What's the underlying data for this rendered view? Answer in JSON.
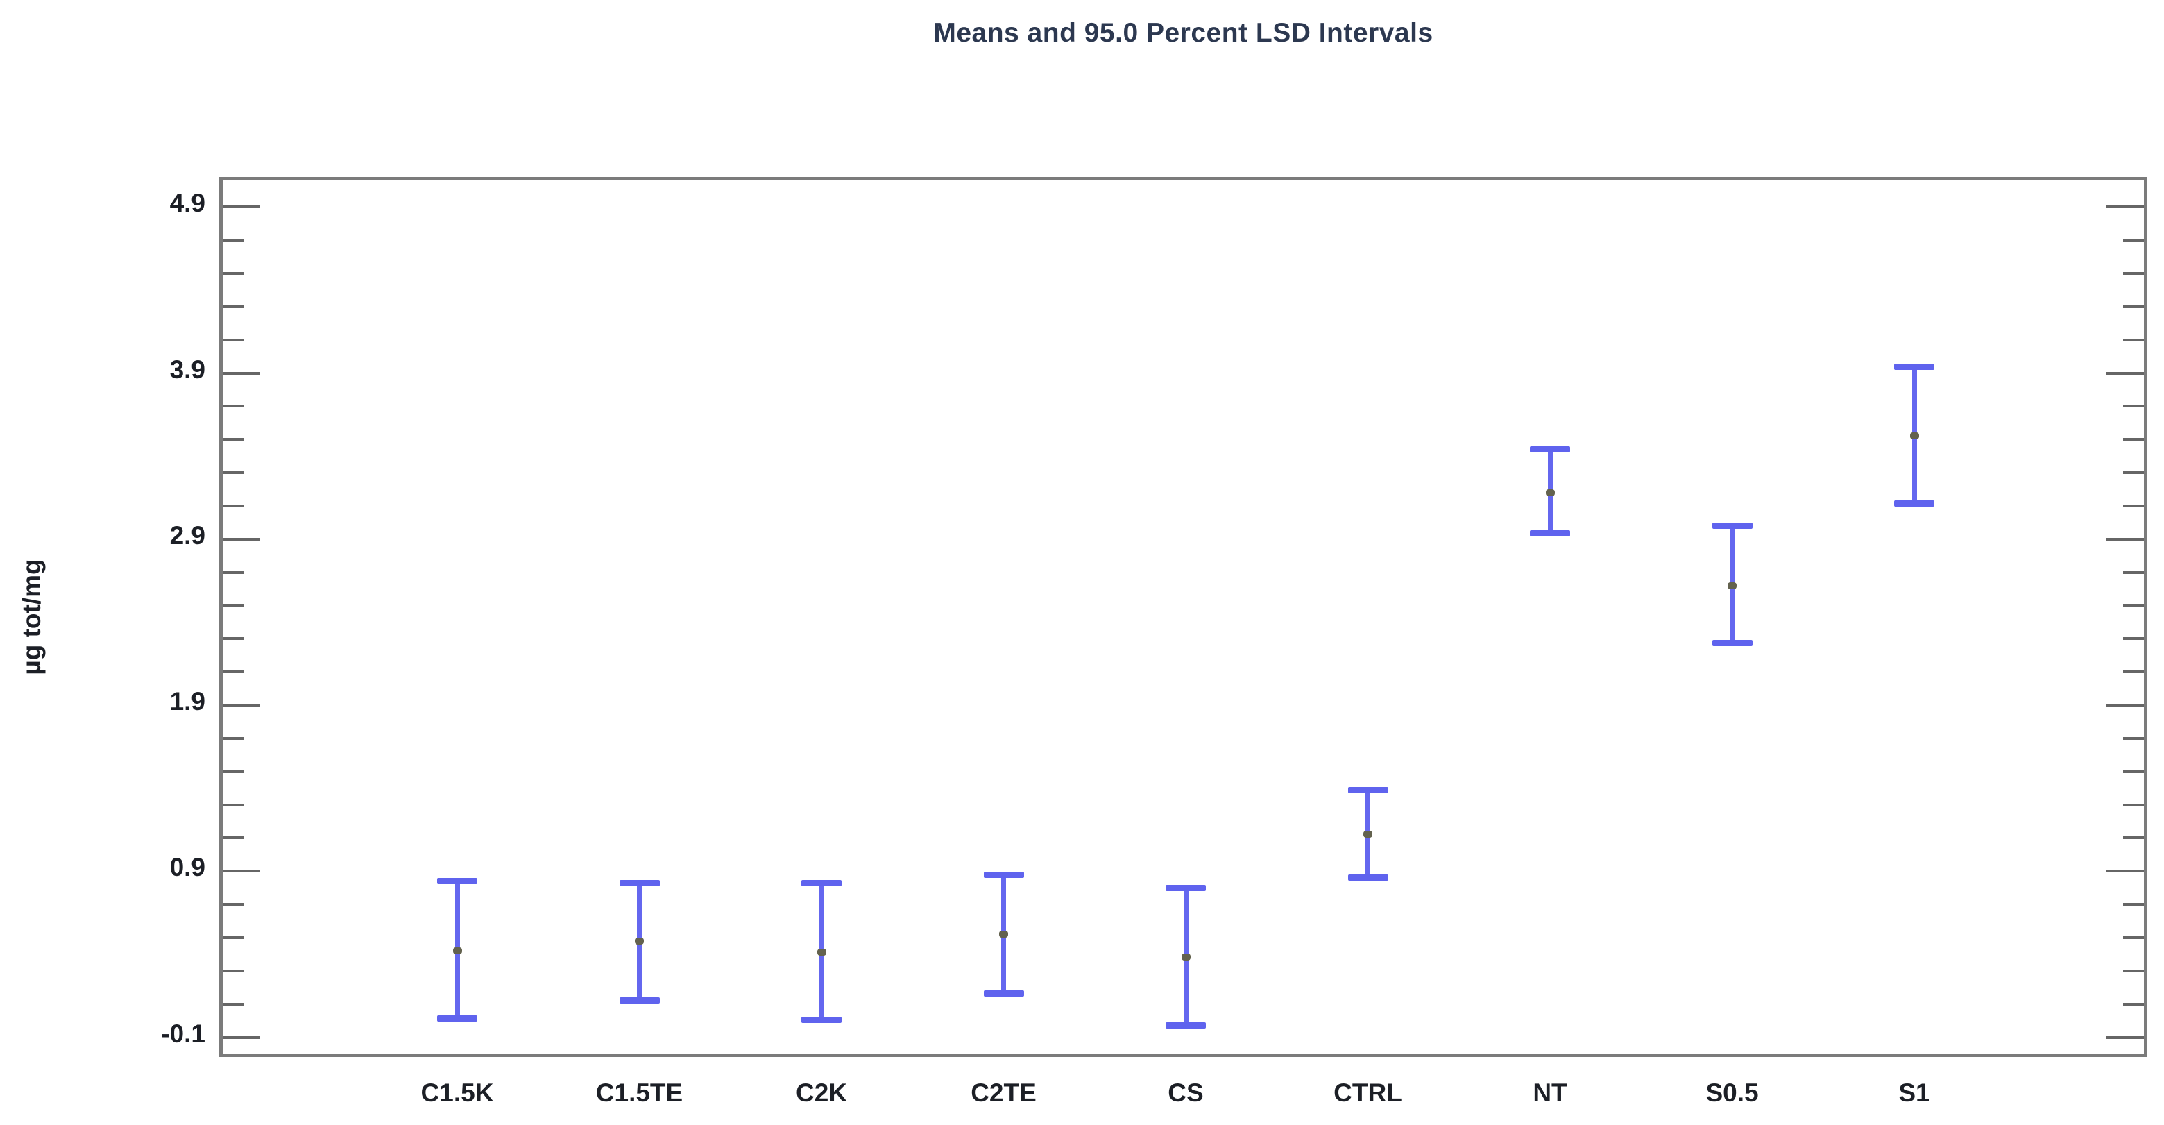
{
  "title": "Means and 95.0 Percent LSD Intervals",
  "chart_data": {
    "type": "scatter",
    "subtype": "means-with-lsd-interval-error-bars",
    "title": "Means and 95.0 Percent LSD Intervals",
    "xlabel": "",
    "ylabel": "µg tot/mg",
    "categories": [
      "C1.5K",
      "C1.5TE",
      "C2K",
      "C2TE",
      "CS",
      "CTRL",
      "NT",
      "S0.5",
      "S1"
    ],
    "series": [
      {
        "name": "mean",
        "values": [
          0.4,
          0.46,
          0.39,
          0.5,
          0.36,
          1.1,
          3.16,
          2.6,
          3.5
        ]
      },
      {
        "name": "lsd_lower_95",
        "values": [
          -0.01,
          0.1,
          -0.02,
          0.14,
          -0.05,
          0.84,
          2.91,
          2.25,
          3.09
        ]
      },
      {
        "name": "lsd_upper_95",
        "values": [
          0.82,
          0.81,
          0.81,
          0.86,
          0.78,
          1.37,
          3.42,
          2.96,
          3.92
        ]
      }
    ],
    "yticks_major": [
      -0.1,
      0.9,
      1.9,
      2.9,
      3.9,
      4.9
    ],
    "ytick_labels": [
      "-0.1",
      "0.9",
      "1.9",
      "2.9",
      "3.9",
      "4.9"
    ],
    "minor_tick_step": 0.2,
    "ylim": [
      -0.24,
      5.06
    ],
    "grid": false,
    "legend": "none",
    "tick_style": "inward, mirrored on left and right frame edges",
    "colors": {
      "interval_bar": "#6467ef",
      "interval_cap": "#5f63ee",
      "mean_marker": "#63624e",
      "frame": "#7b7b7b",
      "tick": "#666666",
      "title_text": "#2c3850",
      "label_text": "#1c1f26"
    }
  }
}
